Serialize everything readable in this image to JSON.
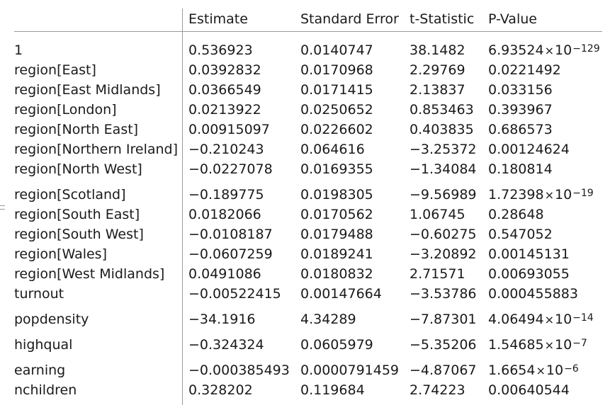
{
  "table": {
    "headers": [
      "",
      "Estimate",
      "Standard Error",
      "t-Statistic",
      "P-Value"
    ],
    "rows": [
      {
        "name": "1",
        "estimate": "0.536923",
        "stderr": "0.0140747",
        "tstat": "38.1482",
        "pmant": "6.93524",
        "pexp": "−129"
      },
      {
        "name": "region[East]",
        "estimate": "0.0392832",
        "stderr": "0.0170968",
        "tstat": "2.29769",
        "pval": "0.0221492"
      },
      {
        "name": "region[East Midlands]",
        "estimate": "0.0366549",
        "stderr": "0.0171415",
        "tstat": "2.13837",
        "pval": "0.033156"
      },
      {
        "name": "region[London]",
        "estimate": "0.0213922",
        "stderr": "0.0250652",
        "tstat": "0.853463",
        "pval": "0.393967"
      },
      {
        "name": "region[North East]",
        "estimate": "0.00915097",
        "stderr": "0.0226602",
        "tstat": "0.403835",
        "pval": "0.686573"
      },
      {
        "name": "region[Northern Ireland]",
        "estimate": "−0.210243",
        "stderr": "0.064616",
        "tstat": "−3.25372",
        "pval": "0.00124624"
      },
      {
        "name": "region[North West]",
        "estimate": "−0.0227078",
        "stderr": "0.0169355",
        "tstat": "−1.34084",
        "pval": "0.180814"
      },
      {
        "name": "region[Scotland]",
        "estimate": "−0.189775",
        "stderr": "0.0198305",
        "tstat": "−9.56989",
        "pmant": "1.72398",
        "pexp": "−19"
      },
      {
        "name": "region[South East]",
        "estimate": "0.0182066",
        "stderr": "0.0170562",
        "tstat": "1.06745",
        "pval": "0.28648"
      },
      {
        "name": "region[South West]",
        "estimate": "−0.0108187",
        "stderr": "0.0179488",
        "tstat": "−0.60275",
        "pval": "0.547052"
      },
      {
        "name": "region[Wales]",
        "estimate": "−0.0607259",
        "stderr": "0.0189241",
        "tstat": "−3.20892",
        "pval": "0.00145131"
      },
      {
        "name": "region[West Midlands]",
        "estimate": "0.0491086",
        "stderr": "0.0180832",
        "tstat": "2.71571",
        "pval": "0.00693055"
      },
      {
        "name": "turnout",
        "estimate": "−0.00522415",
        "stderr": "0.00147664",
        "tstat": "−3.53786",
        "pval": "0.000455883"
      },
      {
        "name": "popdensity",
        "estimate": "−34.1916",
        "stderr": "4.34289",
        "tstat": "−7.87301",
        "pmant": "4.06494",
        "pexp": "−14"
      },
      {
        "name": "highqual",
        "estimate": "−0.324324",
        "stderr": "0.0605979",
        "tstat": "−5.35206",
        "pmant": "1.54685",
        "pexp": "−7"
      },
      {
        "name": "earning",
        "estimate": "−0.000385493",
        "stderr": "0.0000791459",
        "tstat": "−4.87067",
        "pmant": "1.6654",
        "pexp": "−6"
      },
      {
        "name": "nchildren",
        "estimate": "0.328202",
        "stderr": "0.119684",
        "tstat": "2.74223",
        "pval": "0.00640544"
      }
    ],
    "times_symbol": "×",
    "exp_base": "10"
  }
}
